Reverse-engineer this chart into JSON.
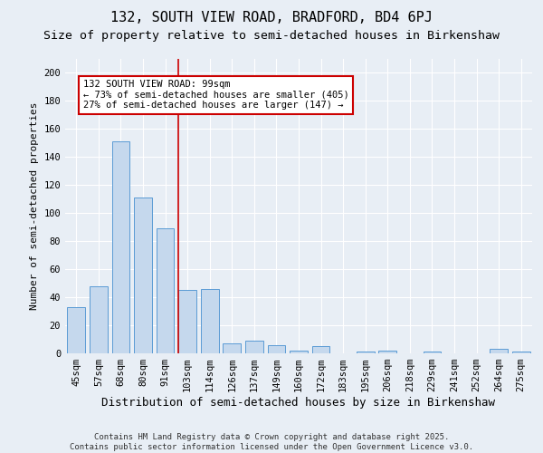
{
  "title": "132, SOUTH VIEW ROAD, BRADFORD, BD4 6PJ",
  "subtitle": "Size of property relative to semi-detached houses in Birkenshaw",
  "xlabel": "Distribution of semi-detached houses by size in Birkenshaw",
  "ylabel": "Number of semi-detached properties",
  "categories": [
    "45sqm",
    "57sqm",
    "68sqm",
    "80sqm",
    "91sqm",
    "103sqm",
    "114sqm",
    "126sqm",
    "137sqm",
    "149sqm",
    "160sqm",
    "172sqm",
    "183sqm",
    "195sqm",
    "206sqm",
    "218sqm",
    "229sqm",
    "241sqm",
    "252sqm",
    "264sqm",
    "275sqm"
  ],
  "values": [
    33,
    48,
    151,
    111,
    89,
    45,
    46,
    7,
    9,
    6,
    2,
    5,
    0,
    1,
    2,
    0,
    1,
    0,
    0,
    3,
    1
  ],
  "bar_color": "#c5d8ed",
  "bar_edge_color": "#5b9bd5",
  "vline_index": 5,
  "annotation_line1": "132 SOUTH VIEW ROAD: 99sqm",
  "annotation_line2": "← 73% of semi-detached houses are smaller (405)",
  "annotation_line3": "27% of semi-detached houses are larger (147) →",
  "annotation_box_color": "#ffffff",
  "annotation_box_edge_color": "#cc0000",
  "vline_color": "#cc0000",
  "ylim": [
    0,
    210
  ],
  "yticks": [
    0,
    20,
    40,
    60,
    80,
    100,
    120,
    140,
    160,
    180,
    200
  ],
  "background_color": "#e8eef5",
  "plot_background": "#e8eef5",
  "footer_line1": "Contains HM Land Registry data © Crown copyright and database right 2025.",
  "footer_line2": "Contains public sector information licensed under the Open Government Licence v3.0.",
  "title_fontsize": 11,
  "subtitle_fontsize": 9.5,
  "xlabel_fontsize": 9,
  "ylabel_fontsize": 8,
  "tick_fontsize": 7.5,
  "annotation_fontsize": 7.5,
  "footer_fontsize": 6.5
}
